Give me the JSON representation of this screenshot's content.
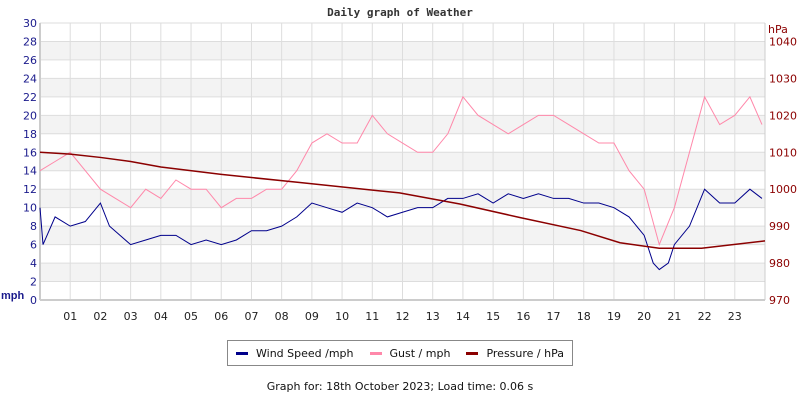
{
  "chart_data": {
    "type": "line",
    "title": "Daily graph of Weather",
    "ylabel": "mph",
    "y2label": "hPa",
    "ylim": [
      0,
      30
    ],
    "y2lim": [
      970,
      1045
    ],
    "yticks": [
      0,
      2,
      4,
      6,
      8,
      10,
      12,
      14,
      16,
      18,
      20,
      22,
      24,
      26,
      28,
      30
    ],
    "y2ticks": [
      970,
      980,
      990,
      1000,
      1010,
      1020,
      1030,
      1040
    ],
    "xlim": [
      0,
      24
    ],
    "xtick_labels": [
      "01",
      "02",
      "03",
      "04",
      "05",
      "06",
      "07",
      "08",
      "09",
      "10",
      "11",
      "12",
      "13",
      "14",
      "15",
      "16",
      "17",
      "18",
      "19",
      "20",
      "21",
      "22",
      "23"
    ],
    "grid": true,
    "colors": {
      "wind": "#00008b",
      "gust": "#ff88aa",
      "pressure": "#8b0000",
      "left_axis": "#1a1a8c",
      "right_axis": "#8b0000"
    },
    "series": [
      {
        "name": "Wind Speed /mph",
        "axis": "left",
        "x": [
          0,
          0.1,
          0.5,
          1,
          1.5,
          2,
          2.3,
          3,
          3.5,
          4,
          4.5,
          5,
          5.5,
          6,
          6.5,
          7,
          7.5,
          8,
          8.5,
          9,
          9.5,
          10,
          10.5,
          11,
          11.5,
          12,
          12.5,
          13,
          13.5,
          14,
          14.5,
          15,
          15.5,
          16,
          16.5,
          17,
          17.5,
          18,
          18.5,
          19,
          19.5,
          20,
          20.3,
          20.5,
          20.8,
          21,
          21.5,
          22,
          22.5,
          23,
          23.5,
          23.9
        ],
        "y": [
          10,
          6,
          9,
          8,
          8.5,
          10.5,
          8,
          6,
          6.5,
          7,
          7,
          6,
          6.5,
          6,
          6.5,
          7.5,
          7.5,
          8,
          9,
          10.5,
          10,
          9.5,
          10.5,
          10,
          9,
          9.5,
          10,
          10,
          11,
          11,
          11.5,
          10.5,
          11.5,
          11,
          11.5,
          11,
          11,
          10.5,
          10.5,
          10,
          9,
          7,
          4,
          3.3,
          4,
          6,
          8,
          12,
          10.5,
          10.5,
          12,
          11
        ]
      },
      {
        "name": "Gust / mph",
        "axis": "left",
        "x": [
          0,
          0.5,
          1,
          1.5,
          2,
          2.5,
          3,
          3.5,
          4,
          4.5,
          5,
          5.5,
          6,
          6.5,
          7,
          7.5,
          8,
          8.5,
          9,
          9.5,
          10,
          10.5,
          11,
          11.5,
          12,
          12.5,
          13,
          13.5,
          14,
          14.5,
          15,
          15.5,
          16,
          16.5,
          17,
          17.5,
          18,
          18.5,
          19,
          19.5,
          20,
          20.5,
          21,
          21.5,
          22,
          22.5,
          23,
          23.5,
          23.9
        ],
        "y": [
          14,
          15,
          16,
          14,
          12,
          11,
          10,
          12,
          11,
          13,
          12,
          12,
          10,
          11,
          11,
          12,
          12,
          14,
          17,
          18,
          17,
          17,
          20,
          18,
          17,
          16,
          16,
          18,
          22,
          20,
          19,
          18,
          19,
          20,
          20,
          19,
          18,
          17,
          17,
          14,
          12,
          6,
          10,
          16,
          22,
          19,
          20,
          22,
          19
        ]
      },
      {
        "name": "Pressure / hPa",
        "axis": "right",
        "x": [
          0,
          1,
          2,
          3,
          4,
          6,
          8.6,
          11.9,
          13.9,
          15.9,
          17.9,
          19.2,
          20.5,
          21.9,
          24
        ],
        "y": [
          1010,
          1009.5,
          1008.6,
          1007.5,
          1006,
          1004,
          1001.8,
          999,
          996,
          992.3,
          988.8,
          985.5,
          984,
          984,
          986
        ]
      }
    ]
  },
  "legend": {
    "wind": "Wind Speed /mph",
    "gust": "Gust / mph",
    "pressure": "Pressure / hPa"
  },
  "footer": "Graph for: 18th October 2023; Load time: 0.06 s"
}
